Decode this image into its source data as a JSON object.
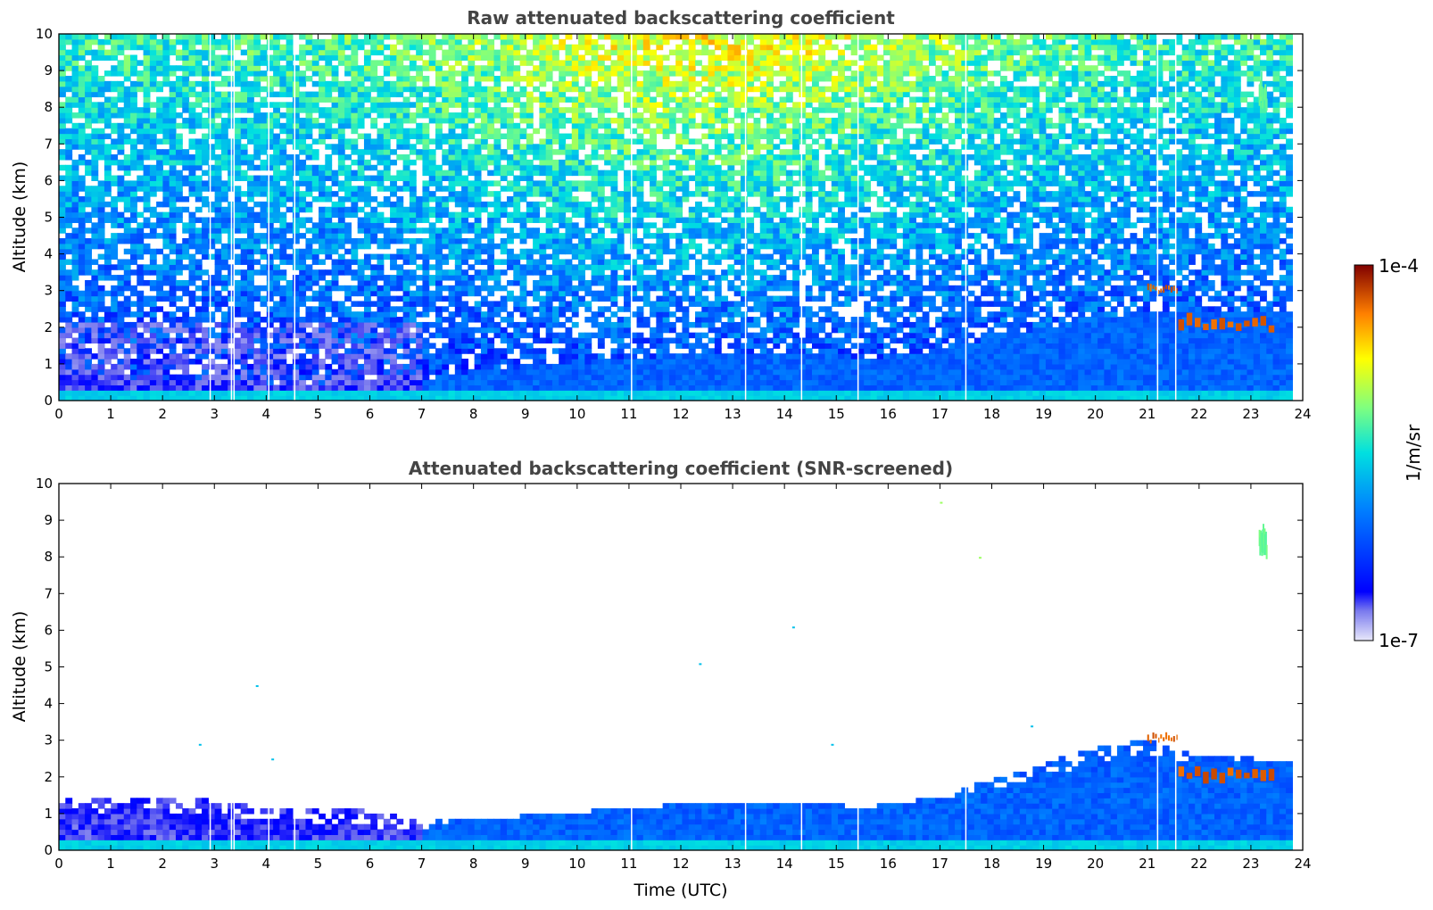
{
  "chart_data": [
    {
      "type": "heatmap",
      "title": "Raw attenuated backscattering coefficient",
      "xlabel": "",
      "ylabel": "Altitude (km)",
      "xlim": [
        0,
        24
      ],
      "ylim": [
        0,
        10
      ],
      "x_ticks": [
        "0",
        "1",
        "2",
        "3",
        "4",
        "5",
        "6",
        "7",
        "8",
        "9",
        "10",
        "11",
        "12",
        "13",
        "14",
        "15",
        "16",
        "17",
        "18",
        "19",
        "20",
        "21",
        "22",
        "23",
        "24"
      ],
      "y_ticks": [
        "0",
        "1",
        "2",
        "3",
        "4",
        "5",
        "6",
        "7",
        "8",
        "9",
        "10"
      ],
      "data_end_time": 23.8,
      "data_gaps_time": [
        2.92,
        3.33,
        3.38,
        4.05,
        4.55,
        11.05,
        13.25,
        14.33,
        15.42,
        17.5,
        21.2,
        21.55
      ],
      "boundary_layer_top_km": [
        [
          0,
          0.75
        ],
        [
          2,
          0.6
        ],
        [
          4,
          0.5
        ],
        [
          6,
          0.5
        ],
        [
          7,
          0.6
        ],
        [
          8,
          0.8
        ],
        [
          9,
          0.95
        ],
        [
          10,
          1.05
        ],
        [
          11,
          1.15
        ],
        [
          12,
          1.25
        ],
        [
          13,
          1.3
        ],
        [
          14,
          1.3
        ],
        [
          15,
          1.25
        ],
        [
          15.5,
          1.15
        ],
        [
          16,
          1.2
        ],
        [
          17,
          1.4
        ],
        [
          18,
          1.7
        ],
        [
          19,
          1.95
        ],
        [
          20,
          2.2
        ],
        [
          21,
          2.4
        ],
        [
          22,
          2.4
        ],
        [
          23,
          2.4
        ],
        [
          23.8,
          2.4
        ]
      ],
      "cloud_features": [
        {
          "time_start": 21.0,
          "time_end": 21.6,
          "altitude_km": [
            2.9,
            3.2
          ],
          "level": "high"
        },
        {
          "time_start": 21.6,
          "time_end": 23.5,
          "altitude_km": [
            1.8,
            2.3
          ],
          "level": "high"
        },
        {
          "time_start": 23.15,
          "time_end": 23.3,
          "altitude_km": [
            7.9,
            8.9
          ],
          "level": "medium"
        }
      ],
      "background_noise": "increases with altitude and around midday (10-17 UTC)"
    },
    {
      "type": "heatmap",
      "title": "Attenuated backscattering coefficient (SNR-screened)",
      "xlabel": "Time (UTC)",
      "ylabel": "Altitude (km)",
      "xlim": [
        0,
        24
      ],
      "ylim": [
        0,
        10
      ],
      "x_ticks": [
        "0",
        "1",
        "2",
        "3",
        "4",
        "5",
        "6",
        "7",
        "8",
        "9",
        "10",
        "11",
        "12",
        "13",
        "14",
        "15",
        "16",
        "17",
        "18",
        "19",
        "20",
        "21",
        "22",
        "23",
        "24"
      ],
      "y_ticks": [
        "0",
        "1",
        "2",
        "3",
        "4",
        "5",
        "6",
        "7",
        "8",
        "9",
        "10"
      ],
      "screened_layer_top_km": [
        [
          0,
          1.5
        ],
        [
          2,
          1.4
        ],
        [
          4,
          1.3
        ],
        [
          6,
          1.05
        ],
        [
          7,
          0.85
        ],
        [
          8,
          0.85
        ],
        [
          9,
          0.95
        ],
        [
          10,
          1.05
        ],
        [
          11,
          1.15
        ],
        [
          12,
          1.25
        ],
        [
          13,
          1.3
        ],
        [
          14,
          1.3
        ],
        [
          15,
          1.25
        ],
        [
          15.5,
          1.05
        ],
        [
          16,
          1.3
        ],
        [
          17,
          1.5
        ],
        [
          18,
          1.9
        ],
        [
          19,
          2.35
        ],
        [
          20,
          2.8
        ],
        [
          21,
          3.05
        ],
        [
          22,
          2.55
        ],
        [
          23,
          2.5
        ],
        [
          23.8,
          2.45
        ]
      ],
      "isolated_points": [
        [
          2.7,
          2.9
        ],
        [
          3.8,
          4.5
        ],
        [
          4.1,
          2.5
        ],
        [
          12.35,
          5.1
        ],
        [
          14.15,
          6.1
        ],
        [
          14.9,
          2.9
        ],
        [
          17.0,
          9.5
        ],
        [
          17.75,
          8.0
        ],
        [
          18.75,
          3.4
        ]
      ]
    }
  ],
  "colorbar": {
    "label": "1/m/sr",
    "max_label": "1e-4",
    "min_label": "1e-7",
    "scale": "log",
    "range": [
      1e-07,
      0.0001
    ]
  }
}
